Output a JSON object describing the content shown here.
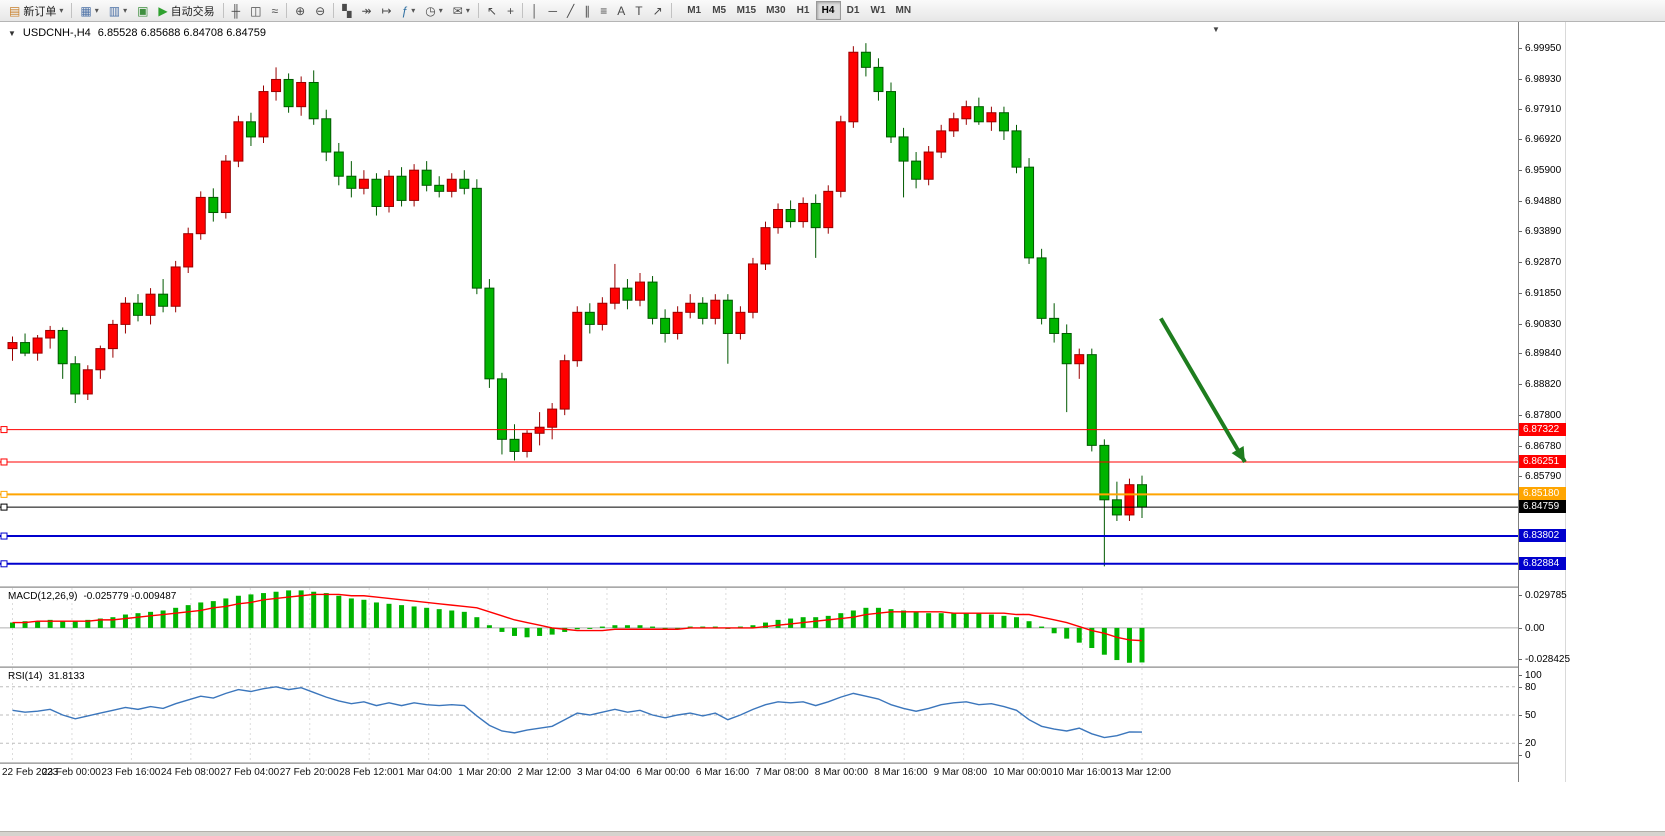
{
  "toolbar": {
    "caret": "▾",
    "notification_badge": "1",
    "timeframes": [
      "M1",
      "M5",
      "M15",
      "M30",
      "H1",
      "H4",
      "D1",
      "W1",
      "MN"
    ],
    "active_timeframe": "H4",
    "buttons": [
      {
        "name": "new-order-button",
        "icon": "new-order-icon",
        "glyph": "▤",
        "color": "#c87f2a",
        "label": "新订单",
        "caret": true
      },
      {
        "type": "sep"
      },
      {
        "name": "new-chart-button",
        "icon": "new-chart-icon",
        "glyph": "▦",
        "color": "#4a6fa5",
        "caret": true
      },
      {
        "name": "profiles-button",
        "icon": "profiles-icon",
        "glyph": "▥",
        "color": "#4a6fa5",
        "caret": true
      },
      {
        "name": "market-watch-button",
        "icon": "market-watch-icon",
        "glyph": "▣",
        "color": "#3f8f3f"
      },
      {
        "name": "auto-trading-button",
        "icon": "auto-trading-play-icon",
        "glyph": "▶",
        "color": "#2fa12f",
        "label": "自动交易"
      },
      {
        "type": "sep"
      },
      {
        "name": "bar-chart-button",
        "icon": "bar-chart-icon",
        "glyph": "╫"
      },
      {
        "name": "candlestick-chart-button",
        "icon": "candlestick-icon",
        "glyph": "◫"
      },
      {
        "name": "line-chart-button",
        "icon": "line-chart-icon",
        "glyph": "≈"
      },
      {
        "type": "sep"
      },
      {
        "name": "zoom-in-button",
        "icon": "zoom-in-icon",
        "glyph": "⊕"
      },
      {
        "name": "zoom-out-button",
        "icon": "zoom-out-icon",
        "glyph": "⊖"
      },
      {
        "type": "sep"
      },
      {
        "name": "tile-windows-button",
        "icon": "tile-windows-icon",
        "glyph": "▚"
      },
      {
        "name": "auto-scroll-button",
        "icon": "auto-scroll-icon",
        "glyph": "↠"
      },
      {
        "name": "chart-shift-button",
        "icon": "chart-shift-icon",
        "glyph": "↦"
      },
      {
        "name": "indicators-button",
        "icon": "indicators-icon",
        "glyph": "ƒ",
        "color": "#2f6fa1",
        "caret": true
      },
      {
        "name": "periods-button",
        "icon": "clock-icon",
        "glyph": "◷",
        "caret": true
      },
      {
        "name": "screenshot-button",
        "icon": "mail-screenshot-icon",
        "glyph": "✉",
        "caret": true
      },
      {
        "type": "sep"
      },
      {
        "name": "cursor-button",
        "icon": "cursor-icon",
        "glyph": "↖"
      },
      {
        "name": "crosshair-button",
        "icon": "crosshair-icon",
        "glyph": "+"
      },
      {
        "type": "sep"
      },
      {
        "name": "vertical-line-button",
        "icon": "vertical-line-icon",
        "glyph": "│"
      },
      {
        "name": "horizontal-line-button",
        "icon": "horizontal-line-icon",
        "glyph": "─"
      },
      {
        "name": "trendline-button",
        "icon": "trendline-icon",
        "glyph": "╱"
      },
      {
        "name": "channel-button",
        "icon": "channel-icon",
        "glyph": "∥"
      },
      {
        "name": "fibonacci-button",
        "icon": "fibonacci-icon",
        "glyph": "≡"
      },
      {
        "name": "text-button",
        "icon": "text-icon",
        "glyph": "A"
      },
      {
        "name": "text-label-button",
        "icon": "text-label-icon",
        "glyph": "T"
      },
      {
        "name": "arrows-button",
        "icon": "arrow-object-icon",
        "glyph": "↗"
      },
      {
        "type": "sep"
      }
    ]
  },
  "chart_header": {
    "collapse_icon": "▼",
    "symbol_period": "USDCNH-,H4",
    "ohlc": "6.85528 6.85688 6.84708 6.84759"
  },
  "markers": {
    "chart_shift": "▼"
  },
  "price_axis_labels": [
    "6.99950",
    "6.98930",
    "6.97910",
    "6.96920",
    "6.95900",
    "6.94880",
    "6.93890",
    "6.92870",
    "6.91850",
    "6.90830",
    "6.89840",
    "6.88820",
    "6.87800",
    "6.86780",
    "6.85790"
  ],
  "levels": [
    {
      "label": "6.87322",
      "value": 6.87322,
      "color": "#FF0000",
      "width": 1,
      "role": "resistance-line"
    },
    {
      "label": "6.86251",
      "value": 6.86251,
      "color": "#FF0000",
      "width": 1,
      "role": "resistance-line"
    },
    {
      "label": "6.85180",
      "value": 6.8518,
      "color": "#FFA500",
      "width": 2,
      "role": "support-line"
    },
    {
      "label": "6.84759",
      "value": 6.84759,
      "color": "#000000",
      "width": 1,
      "role": "current-price-line"
    },
    {
      "label": "6.83802",
      "value": 6.83802,
      "color": "#0000CD",
      "width": 2,
      "role": "support-line"
    },
    {
      "label": "6.82884",
      "value": 6.82884,
      "color": "#0000CD",
      "width": 2,
      "role": "support-line"
    }
  ],
  "annotation_arrow": {
    "from_bar": 91.5,
    "from_price": 6.91,
    "to_bar": 98.2,
    "to_price": 6.8625,
    "color": "#1E7D1E"
  },
  "macd_panel": {
    "name": "MACD(12,26,9)",
    "values": "-0.025779 -0.009487",
    "axis_labels": [
      "0.029785",
      "0.00",
      "-0.028425"
    ],
    "max": 0.029785,
    "min": -0.028425,
    "histogram_color": "#00B400",
    "signal_color": "#FF0000"
  },
  "rsi_panel": {
    "name": "RSI(14)",
    "value": "31.8133",
    "axis_labels": [
      "100",
      "80",
      "50",
      "20",
      "0"
    ],
    "levels": [
      80,
      50,
      20
    ],
    "line_color": "#3B76BC"
  },
  "time_axis": [
    "22 Feb 2023",
    "23 Feb 00:00",
    "23 Feb 16:00",
    "24 Feb 08:00",
    "27 Feb 04:00",
    "27 Feb 20:00",
    "28 Feb 12:00",
    "1 Mar 04:00",
    "1 Mar 20:00",
    "2 Mar 12:00",
    "3 Mar 04:00",
    "6 Mar 00:00",
    "6 Mar 16:00",
    "7 Mar 08:00",
    "8 Mar 00:00",
    "8 Mar 16:00",
    "9 Mar 08:00",
    "10 Mar 00:00",
    "10 Mar 16:00",
    "13 Mar 12:00"
  ],
  "chart_data": {
    "type": "candlestick",
    "symbol": "USDCNH",
    "timeframe": "H4",
    "up_color": "#FF0000",
    "down_color": "#00B400",
    "ylim": [
      6.8215,
      7.008
    ],
    "candles": [
      [
        6.9,
        6.904,
        6.896,
        6.902
      ],
      [
        6.902,
        6.905,
        6.8975,
        6.8985
      ],
      [
        6.8985,
        6.9045,
        6.896,
        6.9035
      ],
      [
        6.9035,
        6.9075,
        6.9,
        6.906
      ],
      [
        6.906,
        6.907,
        6.89,
        6.895
      ],
      [
        6.895,
        6.8975,
        6.882,
        6.885
      ],
      [
        6.885,
        6.8945,
        6.883,
        6.893
      ],
      [
        6.893,
        6.901,
        6.89,
        6.9
      ],
      [
        6.9,
        6.9095,
        6.897,
        6.908
      ],
      [
        6.908,
        6.917,
        6.905,
        6.915
      ],
      [
        6.915,
        6.918,
        6.909,
        6.911
      ],
      [
        6.911,
        6.92,
        6.908,
        6.918
      ],
      [
        6.918,
        6.923,
        6.912,
        6.914
      ],
      [
        6.914,
        6.929,
        6.912,
        6.927
      ],
      [
        6.927,
        6.94,
        6.925,
        6.938
      ],
      [
        6.938,
        6.952,
        6.936,
        6.95
      ],
      [
        6.95,
        6.953,
        6.942,
        6.945
      ],
      [
        6.945,
        6.964,
        6.943,
        6.962
      ],
      [
        6.962,
        6.977,
        6.96,
        6.975
      ],
      [
        6.975,
        6.978,
        6.967,
        6.97
      ],
      [
        6.97,
        6.987,
        6.968,
        6.985
      ],
      [
        6.985,
        6.993,
        6.982,
        6.989
      ],
      [
        6.989,
        6.991,
        6.978,
        6.98
      ],
      [
        6.98,
        6.99,
        6.977,
        6.988
      ],
      [
        6.988,
        6.992,
        6.974,
        6.976
      ],
      [
        6.976,
        6.979,
        6.962,
        6.965
      ],
      [
        6.965,
        6.968,
        6.954,
        6.957
      ],
      [
        6.957,
        6.962,
        6.95,
        6.953
      ],
      [
        6.953,
        6.959,
        6.951,
        6.956
      ],
      [
        6.956,
        6.958,
        6.944,
        6.947
      ],
      [
        6.947,
        6.959,
        6.945,
        6.957
      ],
      [
        6.957,
        6.96,
        6.947,
        6.949
      ],
      [
        6.949,
        6.961,
        6.947,
        6.959
      ],
      [
        6.959,
        6.962,
        6.952,
        6.954
      ],
      [
        6.954,
        6.957,
        6.95,
        6.952
      ],
      [
        6.952,
        6.958,
        6.95,
        6.956
      ],
      [
        6.956,
        6.959,
        6.951,
        6.953
      ],
      [
        6.953,
        6.956,
        6.918,
        6.92
      ],
      [
        6.92,
        6.923,
        6.887,
        6.89
      ],
      [
        6.89,
        6.892,
        6.865,
        6.87
      ],
      [
        6.87,
        6.875,
        6.863,
        6.866
      ],
      [
        6.866,
        6.873,
        6.864,
        6.872
      ],
      [
        6.872,
        6.879,
        6.868,
        6.874
      ],
      [
        6.874,
        6.882,
        6.87,
        6.88
      ],
      [
        6.88,
        6.898,
        6.878,
        6.896
      ],
      [
        6.896,
        6.914,
        6.894,
        6.912
      ],
      [
        6.912,
        6.915,
        6.905,
        6.908
      ],
      [
        6.908,
        6.917,
        6.906,
        6.915
      ],
      [
        6.915,
        6.928,
        6.913,
        6.92
      ],
      [
        6.92,
        6.923,
        6.913,
        6.916
      ],
      [
        6.916,
        6.925,
        6.914,
        6.922
      ],
      [
        6.922,
        6.924,
        6.908,
        6.91
      ],
      [
        6.91,
        6.913,
        6.902,
        6.905
      ],
      [
        6.905,
        6.914,
        6.903,
        6.912
      ],
      [
        6.912,
        6.918,
        6.91,
        6.915
      ],
      [
        6.915,
        6.917,
        6.908,
        6.91
      ],
      [
        6.91,
        6.918,
        6.908,
        6.916
      ],
      [
        6.916,
        6.918,
        6.895,
        6.905
      ],
      [
        6.905,
        6.914,
        6.903,
        6.912
      ],
      [
        6.912,
        6.93,
        6.91,
        6.928
      ],
      [
        6.928,
        6.942,
        6.926,
        6.94
      ],
      [
        6.94,
        6.948,
        6.938,
        6.946
      ],
      [
        6.946,
        6.949,
        6.94,
        6.942
      ],
      [
        6.942,
        6.95,
        6.94,
        6.948
      ],
      [
        6.948,
        6.951,
        6.93,
        6.94
      ],
      [
        6.94,
        6.954,
        6.938,
        6.952
      ],
      [
        6.952,
        6.977,
        6.95,
        6.975
      ],
      [
        6.975,
        7.0,
        6.973,
        6.998
      ],
      [
        6.998,
        7.001,
        6.99,
        6.993
      ],
      [
        6.993,
        6.996,
        6.982,
        6.985
      ],
      [
        6.985,
        6.988,
        6.968,
        6.97
      ],
      [
        6.97,
        6.973,
        6.95,
        6.962
      ],
      [
        6.962,
        6.965,
        6.953,
        6.956
      ],
      [
        6.956,
        6.967,
        6.954,
        6.965
      ],
      [
        6.965,
        6.974,
        6.963,
        6.972
      ],
      [
        6.972,
        6.978,
        6.97,
        6.976
      ],
      [
        6.976,
        6.982,
        6.974,
        6.98
      ],
      [
        6.98,
        6.983,
        6.974,
        6.975
      ],
      [
        6.975,
        6.98,
        6.972,
        6.978
      ],
      [
        6.978,
        6.98,
        6.969,
        6.972
      ],
      [
        6.972,
        6.974,
        6.958,
        6.96
      ],
      [
        6.96,
        6.963,
        6.928,
        6.93
      ],
      [
        6.93,
        6.933,
        6.908,
        6.91
      ],
      [
        6.91,
        6.915,
        6.902,
        6.905
      ],
      [
        6.905,
        6.908,
        6.879,
        6.895
      ],
      [
        6.895,
        6.9,
        6.89,
        6.898
      ],
      [
        6.898,
        6.9,
        6.866,
        6.868
      ],
      [
        6.868,
        6.87,
        6.828,
        6.85
      ],
      [
        6.85,
        6.856,
        6.843,
        6.845
      ],
      [
        6.845,
        6.857,
        6.843,
        6.855
      ],
      [
        6.855,
        6.858,
        6.844,
        6.84759
      ]
    ],
    "macd_histogram": [
      0.004,
      0.005,
      0.005,
      0.006,
      0.005,
      0.005,
      0.006,
      0.007,
      0.008,
      0.01,
      0.011,
      0.012,
      0.013,
      0.015,
      0.017,
      0.019,
      0.02,
      0.022,
      0.024,
      0.025,
      0.026,
      0.027,
      0.028,
      0.028,
      0.027,
      0.026,
      0.024,
      0.022,
      0.021,
      0.019,
      0.018,
      0.017,
      0.016,
      0.015,
      0.014,
      0.013,
      0.012,
      0.008,
      0.002,
      -0.003,
      -0.006,
      -0.007,
      -0.006,
      -0.005,
      -0.003,
      -0.001,
      0.0,
      0.001,
      0.002,
      0.002,
      0.002,
      0.001,
      0.0,
      0.0,
      0.001,
      0.001,
      0.001,
      0.0,
      0.001,
      0.002,
      0.004,
      0.006,
      0.007,
      0.008,
      0.008,
      0.009,
      0.011,
      0.013,
      0.015,
      0.015,
      0.014,
      0.013,
      0.012,
      0.011,
      0.011,
      0.011,
      0.011,
      0.011,
      0.01,
      0.009,
      0.008,
      0.005,
      0.001,
      -0.004,
      -0.008,
      -0.011,
      -0.015,
      -0.02,
      -0.024,
      -0.026,
      -0.025779
    ],
    "macd_signal": [
      0.004,
      0.004,
      0.005,
      0.005,
      0.005,
      0.005,
      0.005,
      0.006,
      0.006,
      0.007,
      0.008,
      0.009,
      0.01,
      0.011,
      0.012,
      0.013,
      0.015,
      0.016,
      0.018,
      0.019,
      0.021,
      0.022,
      0.023,
      0.024,
      0.025,
      0.025,
      0.025,
      0.024,
      0.024,
      0.023,
      0.022,
      0.021,
      0.02,
      0.019,
      0.018,
      0.017,
      0.016,
      0.015,
      0.012,
      0.009,
      0.006,
      0.004,
      0.002,
      0.0,
      -0.001,
      -0.002,
      -0.002,
      -0.002,
      -0.001,
      -0.001,
      -0.001,
      -0.001,
      -0.001,
      -0.001,
      0.0,
      0.0,
      0.0,
      0.0,
      0.0,
      0.0,
      0.001,
      0.002,
      0.003,
      0.004,
      0.005,
      0.006,
      0.007,
      0.008,
      0.01,
      0.011,
      0.012,
      0.012,
      0.012,
      0.012,
      0.012,
      0.011,
      0.011,
      0.011,
      0.011,
      0.011,
      0.01,
      0.01,
      0.008,
      0.006,
      0.004,
      0.001,
      -0.002,
      -0.004,
      -0.007,
      -0.009,
      -0.009487
    ],
    "rsi_values": [
      55,
      53,
      54,
      56,
      50,
      46,
      49,
      52,
      55,
      58,
      56,
      59,
      57,
      62,
      66,
      70,
      68,
      73,
      77,
      75,
      78,
      80,
      77,
      79,
      74,
      69,
      65,
      62,
      64,
      60,
      63,
      60,
      63,
      61,
      60,
      61,
      60,
      49,
      39,
      33,
      31,
      34,
      36,
      38,
      45,
      52,
      50,
      53,
      56,
      53,
      55,
      50,
      47,
      50,
      52,
      49,
      52,
      45,
      50,
      56,
      61,
      64,
      63,
      64,
      60,
      64,
      69,
      73,
      70,
      67,
      61,
      57,
      54,
      57,
      61,
      63,
      64,
      61,
      62,
      59,
      55,
      45,
      38,
      35,
      33,
      36,
      30,
      26,
      28,
      32,
      31.8133
    ]
  }
}
